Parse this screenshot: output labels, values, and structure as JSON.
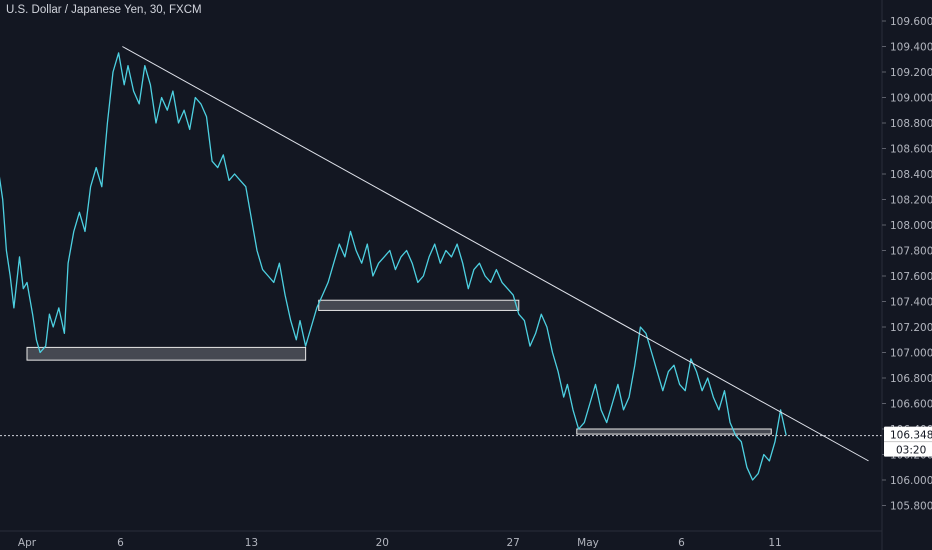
{
  "header": {
    "title": "U.S. Dollar / Japanese Yen, 30, FXCM"
  },
  "chart_data": {
    "type": "line",
    "title": "U.S. Dollar / Japanese Yen, 30, FXCM",
    "xlabel": "",
    "ylabel": "",
    "ylim": [
      105.64,
      109.76
    ],
    "x_ticks": [
      {
        "label": "Apr",
        "day": 0
      },
      {
        "label": "6",
        "day": 5
      },
      {
        "label": "13",
        "day": 12
      },
      {
        "label": "20",
        "day": 19
      },
      {
        "label": "27",
        "day": 26
      },
      {
        "label": "May",
        "day": 30
      },
      {
        "label": "6",
        "day": 35
      },
      {
        "label": "11",
        "day": 40
      }
    ],
    "y_ticks": [
      "109.600",
      "109.400",
      "109.200",
      "109.000",
      "108.800",
      "108.600",
      "108.400",
      "108.200",
      "108.000",
      "107.800",
      "107.600",
      "107.400",
      "107.200",
      "107.000",
      "106.800",
      "106.600",
      "106.400",
      "106.200",
      "106.000",
      "105.800"
    ],
    "series": [
      {
        "color": "#4dd0e1",
        "points": [
          [
            -1.9,
            108.7
          ],
          [
            -1.6,
            108.5
          ],
          [
            -1.3,
            108.2
          ],
          [
            -1.1,
            107.8
          ],
          [
            -0.9,
            107.6
          ],
          [
            -0.7,
            107.35
          ],
          [
            -0.4,
            107.75
          ],
          [
            -0.2,
            107.5
          ],
          [
            0.0,
            107.55
          ],
          [
            0.3,
            107.3
          ],
          [
            0.5,
            107.1
          ],
          [
            0.7,
            107.0
          ],
          [
            1.0,
            107.05
          ],
          [
            1.2,
            107.3
          ],
          [
            1.4,
            107.2
          ],
          [
            1.7,
            107.35
          ],
          [
            2.0,
            107.15
          ],
          [
            2.2,
            107.7
          ],
          [
            2.5,
            107.95
          ],
          [
            2.8,
            108.1
          ],
          [
            3.1,
            107.95
          ],
          [
            3.4,
            108.3
          ],
          [
            3.7,
            108.45
          ],
          [
            4.0,
            108.3
          ],
          [
            4.3,
            108.8
          ],
          [
            4.6,
            109.2
          ],
          [
            4.9,
            109.35
          ],
          [
            5.2,
            109.1
          ],
          [
            5.4,
            109.25
          ],
          [
            5.7,
            109.05
          ],
          [
            6.0,
            108.95
          ],
          [
            6.3,
            109.25
          ],
          [
            6.6,
            109.1
          ],
          [
            6.9,
            108.8
          ],
          [
            7.2,
            109.0
          ],
          [
            7.5,
            108.9
          ],
          [
            7.8,
            109.05
          ],
          [
            8.1,
            108.8
          ],
          [
            8.4,
            108.9
          ],
          [
            8.7,
            108.75
          ],
          [
            9.0,
            109.0
          ],
          [
            9.3,
            108.95
          ],
          [
            9.6,
            108.85
          ],
          [
            9.9,
            108.5
          ],
          [
            10.2,
            108.45
          ],
          [
            10.5,
            108.55
          ],
          [
            10.8,
            108.35
          ],
          [
            11.1,
            108.4
          ],
          [
            11.4,
            108.35
          ],
          [
            11.7,
            108.3
          ],
          [
            12.0,
            108.05
          ],
          [
            12.3,
            107.8
          ],
          [
            12.6,
            107.65
          ],
          [
            12.9,
            107.6
          ],
          [
            13.2,
            107.55
          ],
          [
            13.5,
            107.7
          ],
          [
            13.8,
            107.45
          ],
          [
            14.1,
            107.25
          ],
          [
            14.4,
            107.1
          ],
          [
            14.6,
            107.25
          ],
          [
            14.9,
            107.05
          ],
          [
            15.2,
            107.2
          ],
          [
            15.5,
            107.35
          ],
          [
            15.8,
            107.45
          ],
          [
            16.1,
            107.55
          ],
          [
            16.4,
            107.7
          ],
          [
            16.7,
            107.85
          ],
          [
            17.0,
            107.75
          ],
          [
            17.3,
            107.95
          ],
          [
            17.6,
            107.8
          ],
          [
            17.9,
            107.7
          ],
          [
            18.2,
            107.85
          ],
          [
            18.5,
            107.6
          ],
          [
            18.8,
            107.7
          ],
          [
            19.1,
            107.75
          ],
          [
            19.4,
            107.8
          ],
          [
            19.7,
            107.65
          ],
          [
            20.0,
            107.75
          ],
          [
            20.3,
            107.8
          ],
          [
            20.6,
            107.7
          ],
          [
            20.9,
            107.55
          ],
          [
            21.2,
            107.6
          ],
          [
            21.5,
            107.75
          ],
          [
            21.8,
            107.85
          ],
          [
            22.1,
            107.7
          ],
          [
            22.4,
            107.8
          ],
          [
            22.7,
            107.75
          ],
          [
            23.0,
            107.85
          ],
          [
            23.3,
            107.7
          ],
          [
            23.6,
            107.5
          ],
          [
            23.9,
            107.65
          ],
          [
            24.2,
            107.7
          ],
          [
            24.5,
            107.6
          ],
          [
            24.8,
            107.55
          ],
          [
            25.1,
            107.65
          ],
          [
            25.4,
            107.55
          ],
          [
            25.7,
            107.5
          ],
          [
            26.0,
            107.45
          ],
          [
            26.3,
            107.3
          ],
          [
            26.6,
            107.25
          ],
          [
            26.9,
            107.05
          ],
          [
            27.2,
            107.15
          ],
          [
            27.5,
            107.3
          ],
          [
            27.8,
            107.2
          ],
          [
            28.1,
            107.0
          ],
          [
            28.4,
            106.85
          ],
          [
            28.7,
            106.65
          ],
          [
            28.9,
            106.75
          ],
          [
            29.2,
            106.55
          ],
          [
            29.5,
            106.4
          ],
          [
            29.8,
            106.45
          ],
          [
            30.1,
            106.6
          ],
          [
            30.4,
            106.75
          ],
          [
            30.7,
            106.55
          ],
          [
            31.0,
            106.45
          ],
          [
            31.3,
            106.6
          ],
          [
            31.6,
            106.75
          ],
          [
            31.9,
            106.55
          ],
          [
            32.2,
            106.65
          ],
          [
            32.5,
            106.9
          ],
          [
            32.8,
            107.2
          ],
          [
            33.1,
            107.15
          ],
          [
            33.4,
            107.0
          ],
          [
            33.7,
            106.85
          ],
          [
            34.0,
            106.7
          ],
          [
            34.3,
            106.85
          ],
          [
            34.6,
            106.9
          ],
          [
            34.9,
            106.75
          ],
          [
            35.2,
            106.7
          ],
          [
            35.5,
            106.95
          ],
          [
            35.8,
            106.85
          ],
          [
            36.1,
            106.7
          ],
          [
            36.4,
            106.8
          ],
          [
            36.7,
            106.65
          ],
          [
            37.0,
            106.55
          ],
          [
            37.3,
            106.7
          ],
          [
            37.6,
            106.45
          ],
          [
            37.9,
            106.35
          ],
          [
            38.2,
            106.3
          ],
          [
            38.5,
            106.1
          ],
          [
            38.8,
            106.0
          ],
          [
            39.1,
            106.05
          ],
          [
            39.4,
            106.2
          ],
          [
            39.7,
            106.15
          ],
          [
            40.0,
            106.3
          ],
          [
            40.3,
            106.55
          ],
          [
            40.6,
            106.35
          ]
        ]
      }
    ],
    "trendline": {
      "from": [
        5.1,
        109.4
      ],
      "to": [
        45.0,
        106.15
      ]
    },
    "zones": [
      {
        "from_day": 0.0,
        "to_day": 14.9,
        "low": 106.94,
        "high": 107.04
      },
      {
        "from_day": 15.6,
        "to_day": 26.3,
        "low": 107.33,
        "high": 107.41
      },
      {
        "from_day": 29.4,
        "to_day": 39.8,
        "low": 106.36,
        "high": 106.4
      }
    ],
    "last_price": {
      "value": "106.348",
      "countdown": "03:20",
      "level": 106.348
    },
    "grid": false,
    "legend": "none"
  }
}
